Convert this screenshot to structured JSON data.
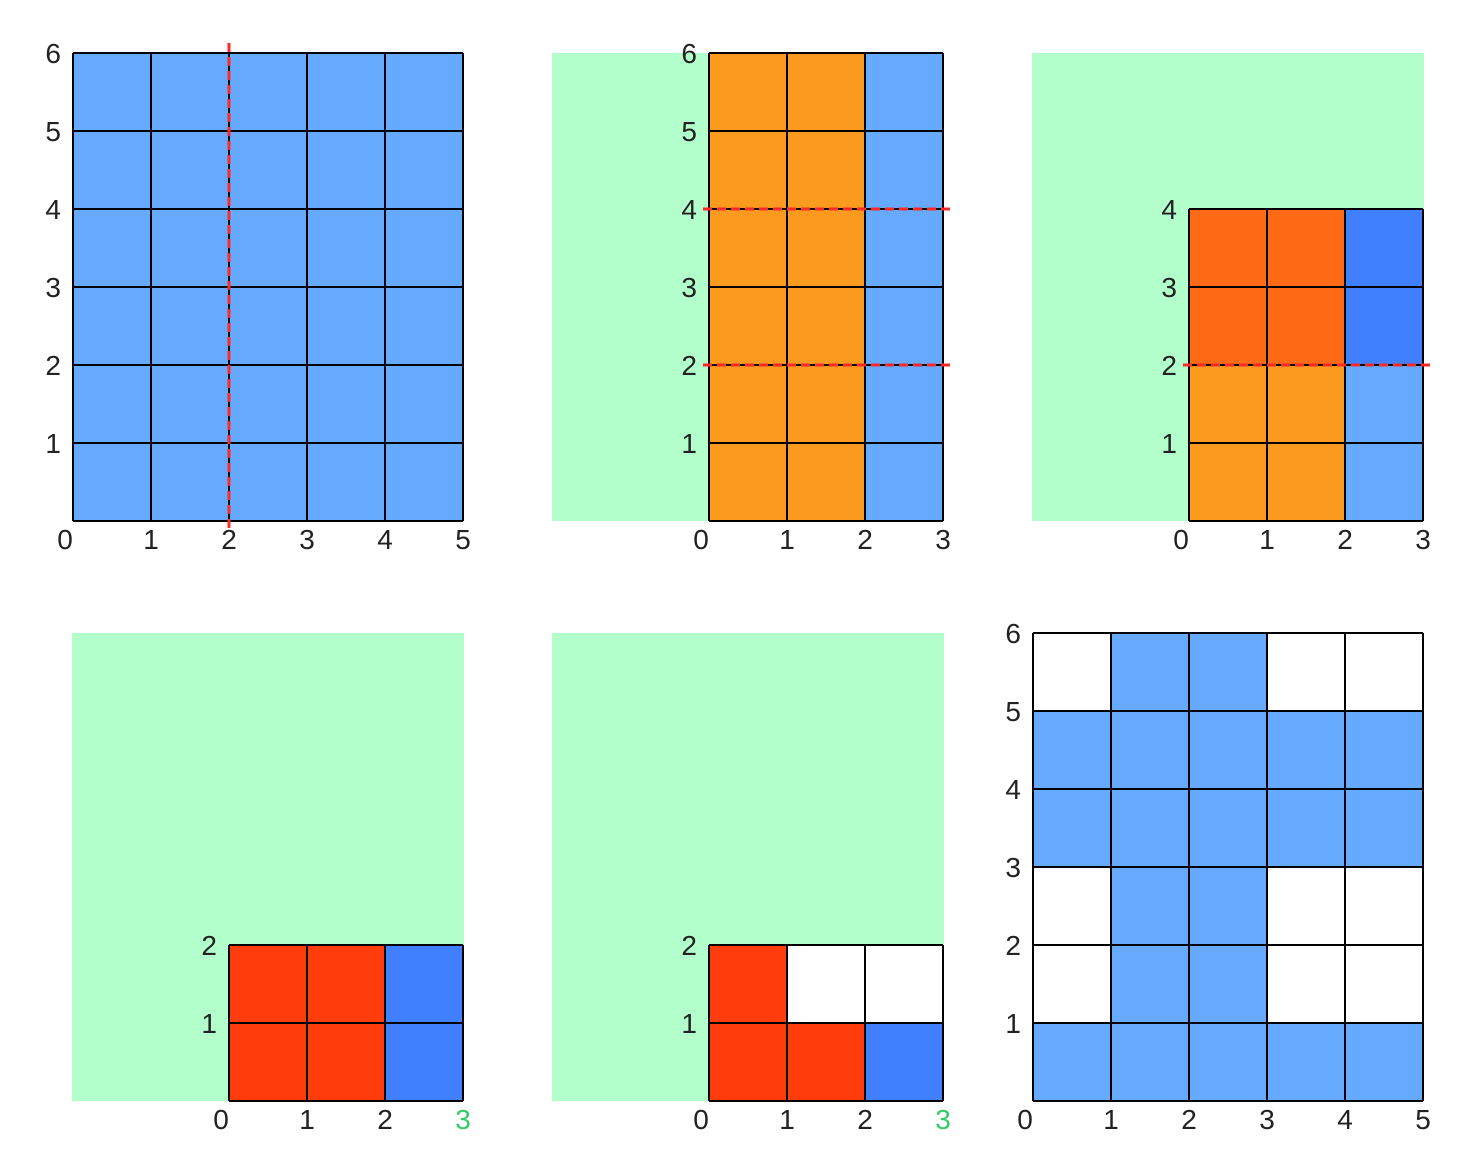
{
  "colors": {
    "green_bg": "#b3ffcc",
    "blue": "#66aaff",
    "blue_dark": "#4080ff",
    "orange": "#fa9b20",
    "orange_dark": "#ff6a16",
    "red": "#ff3d0c",
    "white": "#ffffff",
    "cut_line": "#ff2a2a",
    "grid_line": "#000000",
    "tick_green": "#33cc66"
  },
  "panels": [
    {
      "id": "panel-1",
      "has_background": false,
      "cols": 5,
      "rows": 6,
      "x_ticks": [
        "0",
        "1",
        "2",
        "3",
        "4",
        "5"
      ],
      "y_ticks": [
        "1",
        "2",
        "3",
        "4",
        "5",
        "6"
      ],
      "cells": [
        "BBBBB",
        "BBBBB",
        "BBBBB",
        "BBBBB",
        "BBBBB",
        "BBBBB"
      ],
      "cuts": [
        {
          "dir": "v",
          "at": 2
        }
      ]
    },
    {
      "id": "panel-2",
      "has_background": true,
      "cols": 3,
      "rows": 6,
      "x_ticks": [
        "0",
        "1",
        "2",
        "3"
      ],
      "y_ticks": [
        "1",
        "2",
        "3",
        "4",
        "5",
        "6"
      ],
      "cells": [
        "OOB",
        "OOB",
        "OOB",
        "OOB",
        "OOB",
        "OOB"
      ],
      "cuts": [
        {
          "dir": "h",
          "at": 4
        },
        {
          "dir": "h",
          "at": 2
        }
      ]
    },
    {
      "id": "panel-3",
      "has_background": true,
      "cols": 3,
      "rows": 4,
      "x_ticks": [
        "0",
        "1",
        "2",
        "3"
      ],
      "y_ticks": [
        "1",
        "2",
        "3",
        "4"
      ],
      "cells": [
        "ddD",
        "ddD",
        "OOB",
        "OOB"
      ],
      "cuts": [
        {
          "dir": "h",
          "at": 2
        }
      ]
    },
    {
      "id": "panel-4",
      "has_background": true,
      "cols": 3,
      "rows": 2,
      "x_ticks": [
        "0",
        "1",
        "2",
        "3"
      ],
      "x_tick_green": [
        false,
        false,
        false,
        true
      ],
      "y_ticks": [
        "1",
        "2"
      ],
      "cells": [
        "RRD",
        "RRD"
      ],
      "cuts": []
    },
    {
      "id": "panel-5",
      "has_background": true,
      "cols": 3,
      "rows": 2,
      "x_ticks": [
        "0",
        "1",
        "2",
        "3"
      ],
      "x_tick_green": [
        false,
        false,
        false,
        true
      ],
      "y_ticks": [
        "1",
        "2"
      ],
      "cells": [
        "RWW",
        "RRD"
      ],
      "cuts": []
    },
    {
      "id": "panel-6",
      "has_background": false,
      "cols": 5,
      "rows": 6,
      "x_ticks": [
        "0",
        "1",
        "2",
        "3",
        "4",
        "5"
      ],
      "y_ticks": [
        "1",
        "2",
        "3",
        "4",
        "5",
        "6"
      ],
      "cells": [
        "WBBWW",
        "BBBBB",
        "BBBBB",
        "WBBWW",
        "WBBWW",
        "BBBBB"
      ],
      "cuts": []
    }
  ]
}
